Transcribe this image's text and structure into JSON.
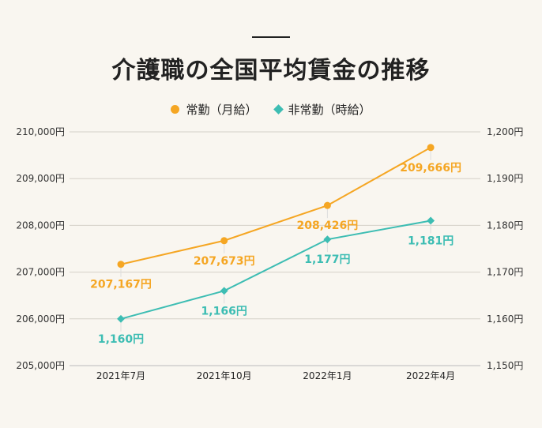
{
  "chart_data": {
    "type": "line",
    "title": "介護職の全国平均賃金の推移",
    "categories": [
      "2021年7月",
      "2021年10月",
      "2022年1月",
      "2022年4月"
    ],
    "series": [
      {
        "name": "常勤（月給）",
        "axis": "left",
        "marker": "circle",
        "color": "#f5a623",
        "values": [
          207167,
          207673,
          208426,
          209666
        ],
        "labels": [
          "207,167円",
          "207,673円",
          "208,426円",
          "209,666円"
        ]
      },
      {
        "name": "非常勤（時給）",
        "axis": "right",
        "marker": "diamond",
        "color": "#3dbdb3",
        "values": [
          1160,
          1166,
          1177,
          1181
        ],
        "labels": [
          "1,160円",
          "1,166円",
          "1,177円",
          "1,181円"
        ]
      }
    ],
    "left_axis": {
      "ylim": [
        205000,
        210000
      ],
      "ticks": [
        "205,000円",
        "206,000円",
        "207,000円",
        "208,000円",
        "209,000円",
        "210,000円"
      ]
    },
    "right_axis": {
      "ylim": [
        1150,
        1200
      ],
      "ticks": [
        "1,150円",
        "1,160円",
        "1,170円",
        "1,180円",
        "1,190円",
        "1,200円"
      ]
    },
    "grid": true,
    "legend": "top-center"
  }
}
